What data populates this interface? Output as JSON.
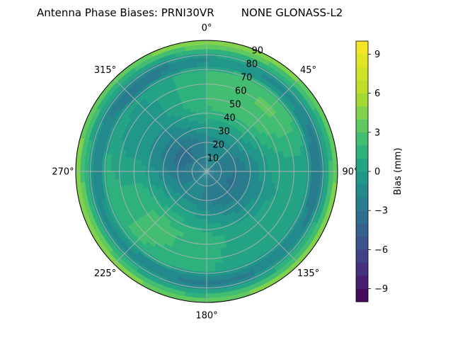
{
  "chart_data": {
    "type": "heatmap",
    "projection": "polar",
    "title": "Antenna Phase Biases: PRNI30VR        NONE GLONASS-L2",
    "azimuth_tick_labels": [
      "0°",
      "45°",
      "90°",
      "135°",
      "180°",
      "225°",
      "270°",
      "315°"
    ],
    "radial_tick_labels": [
      "10",
      "20",
      "30",
      "40",
      "50",
      "60",
      "70",
      "80",
      "90"
    ],
    "radial_range": [
      0,
      90
    ],
    "theta_zero": "N",
    "theta_direction": "clockwise",
    "grid": true,
    "colorbar": {
      "label": "Bias (mm)",
      "range": [
        -10,
        10
      ],
      "levels": 20,
      "ticks": [
        -9,
        -6,
        -3,
        0,
        3,
        6,
        9
      ],
      "tick_labels": [
        "−9",
        "−6",
        "−3",
        "0",
        "3",
        "6",
        "9"
      ],
      "colormap": "viridis",
      "placement": "right"
    },
    "pattern_summary": {
      "center_bias_mm": -2,
      "ring_20_40_bias_mm": -2.5,
      "ring_50_70_bias_mm": 1,
      "ring_75_85_bias_mm": -2,
      "edge_bias_mm": 5
    }
  }
}
